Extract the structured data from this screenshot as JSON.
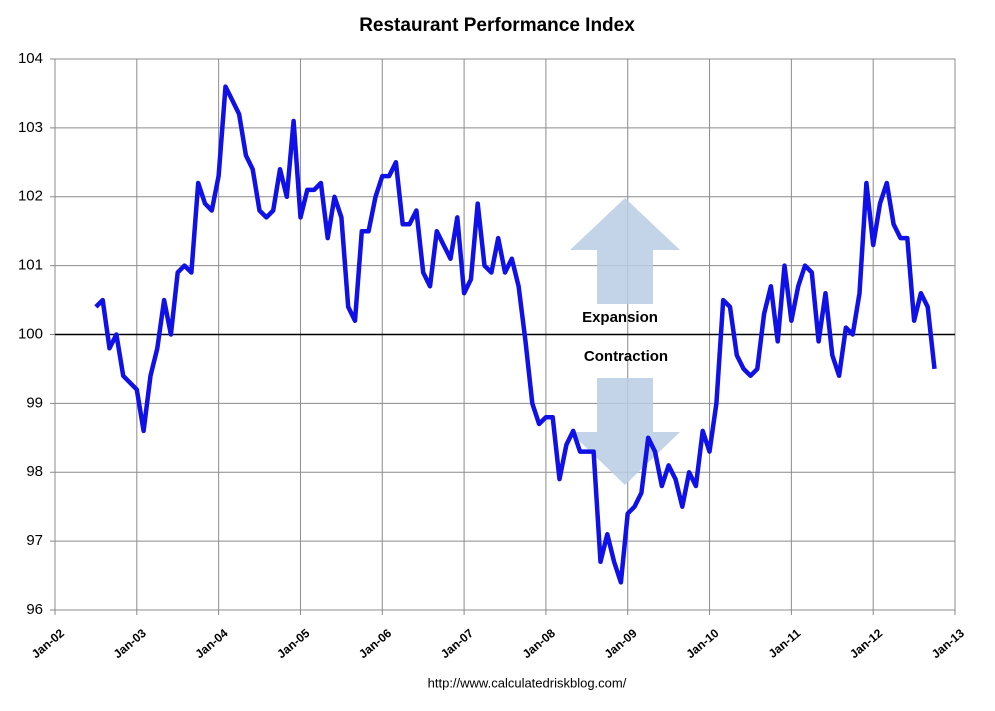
{
  "chart_data": {
    "type": "line",
    "title": "Restaurant Performance Index",
    "annotations": [
      "Expansion",
      "Contraction"
    ],
    "source": "http://www.calculatedriskblog.com/",
    "x": [
      "2002-07",
      "2002-08",
      "2002-09",
      "2002-10",
      "2002-11",
      "2002-12",
      "2003-01",
      "2003-02",
      "2003-03",
      "2003-04",
      "2003-05",
      "2003-06",
      "2003-07",
      "2003-08",
      "2003-09",
      "2003-10",
      "2003-11",
      "2003-12",
      "2004-01",
      "2004-02",
      "2004-03",
      "2004-04",
      "2004-05",
      "2004-06",
      "2004-07",
      "2004-08",
      "2004-09",
      "2004-10",
      "2004-11",
      "2004-12",
      "2005-01",
      "2005-02",
      "2005-03",
      "2005-04",
      "2005-05",
      "2005-06",
      "2005-07",
      "2005-08",
      "2005-09",
      "2005-10",
      "2005-11",
      "2005-12",
      "2006-01",
      "2006-02",
      "2006-03",
      "2006-04",
      "2006-05",
      "2006-06",
      "2006-07",
      "2006-08",
      "2006-09",
      "2006-10",
      "2006-11",
      "2006-12",
      "2007-01",
      "2007-02",
      "2007-03",
      "2007-04",
      "2007-05",
      "2007-06",
      "2007-07",
      "2007-08",
      "2007-09",
      "2007-10",
      "2007-11",
      "2007-12",
      "2008-01",
      "2008-02",
      "2008-03",
      "2008-04",
      "2008-05",
      "2008-06",
      "2008-07",
      "2008-08",
      "2008-09",
      "2008-10",
      "2008-11",
      "2008-12",
      "2009-01",
      "2009-02",
      "2009-03",
      "2009-04",
      "2009-05",
      "2009-06",
      "2009-07",
      "2009-08",
      "2009-09",
      "2009-10",
      "2009-11",
      "2009-12",
      "2010-01",
      "2010-02",
      "2010-03",
      "2010-04",
      "2010-05",
      "2010-06",
      "2010-07",
      "2010-08",
      "2010-09",
      "2010-10",
      "2010-11",
      "2010-12",
      "2011-01",
      "2011-02",
      "2011-03",
      "2011-04",
      "2011-05",
      "2011-06",
      "2011-07",
      "2011-08",
      "2011-09",
      "2011-10",
      "2011-11",
      "2011-12",
      "2012-01",
      "2012-02",
      "2012-03",
      "2012-04",
      "2012-05",
      "2012-06",
      "2012-07",
      "2012-08",
      "2012-09",
      "2012-10"
    ],
    "series": [
      {
        "name": "Restaurant Performance Index",
        "color": "#1010e8",
        "values": [
          100.4,
          100.5,
          99.8,
          100.0,
          99.4,
          99.3,
          99.2,
          98.6,
          99.4,
          99.8,
          100.5,
          100.0,
          100.9,
          101.0,
          100.9,
          102.2,
          101.9,
          101.8,
          102.3,
          103.6,
          103.4,
          103.2,
          102.6,
          102.4,
          101.8,
          101.7,
          101.8,
          102.4,
          102.0,
          103.1,
          101.7,
          102.1,
          102.1,
          102.2,
          101.4,
          102.0,
          101.7,
          100.4,
          100.2,
          101.5,
          101.5,
          102.0,
          102.3,
          102.3,
          102.5,
          101.6,
          101.6,
          101.8,
          100.9,
          100.7,
          101.5,
          101.3,
          101.1,
          101.7,
          100.6,
          100.8,
          101.9,
          101.0,
          100.9,
          101.4,
          100.9,
          101.1,
          100.7,
          99.9,
          99.0,
          98.7,
          98.8,
          98.8,
          97.9,
          98.4,
          98.6,
          98.3,
          98.3,
          98.3,
          96.7,
          97.1,
          96.7,
          96.4,
          97.4,
          97.5,
          97.7,
          98.5,
          98.3,
          97.8,
          98.1,
          97.9,
          97.5,
          98.0,
          97.8,
          98.6,
          98.3,
          99.0,
          100.5,
          100.4,
          99.7,
          99.5,
          99.4,
          99.5,
          100.3,
          100.7,
          99.9,
          101.0,
          100.2,
          100.7,
          101.0,
          100.9,
          99.9,
          100.6,
          99.7,
          99.4,
          100.1,
          100.0,
          100.6,
          102.2,
          101.3,
          101.9,
          102.2,
          101.6,
          101.4,
          101.4,
          100.2,
          100.6,
          100.4,
          99.5
        ]
      }
    ],
    "xlim": [
      "2002-01",
      "2013-01"
    ],
    "xticks": [
      {
        "value": "2002-01",
        "label": "Jan-02"
      },
      {
        "value": "2003-01",
        "label": "Jan-03"
      },
      {
        "value": "2004-01",
        "label": "Jan-04"
      },
      {
        "value": "2005-01",
        "label": "Jan-05"
      },
      {
        "value": "2006-01",
        "label": "Jan-06"
      },
      {
        "value": "2007-01",
        "label": "Jan-07"
      },
      {
        "value": "2008-01",
        "label": "Jan-08"
      },
      {
        "value": "2009-01",
        "label": "Jan-09"
      },
      {
        "value": "2010-01",
        "label": "Jan-10"
      },
      {
        "value": "2011-01",
        "label": "Jan-11"
      },
      {
        "value": "2012-01",
        "label": "Jan-12"
      },
      {
        "value": "2013-01",
        "label": "Jan-13"
      }
    ],
    "ylim": [
      96,
      104
    ],
    "yticks": [
      96,
      97,
      98,
      99,
      100,
      101,
      102,
      103,
      104
    ],
    "reference_line": 100,
    "grid": true
  }
}
